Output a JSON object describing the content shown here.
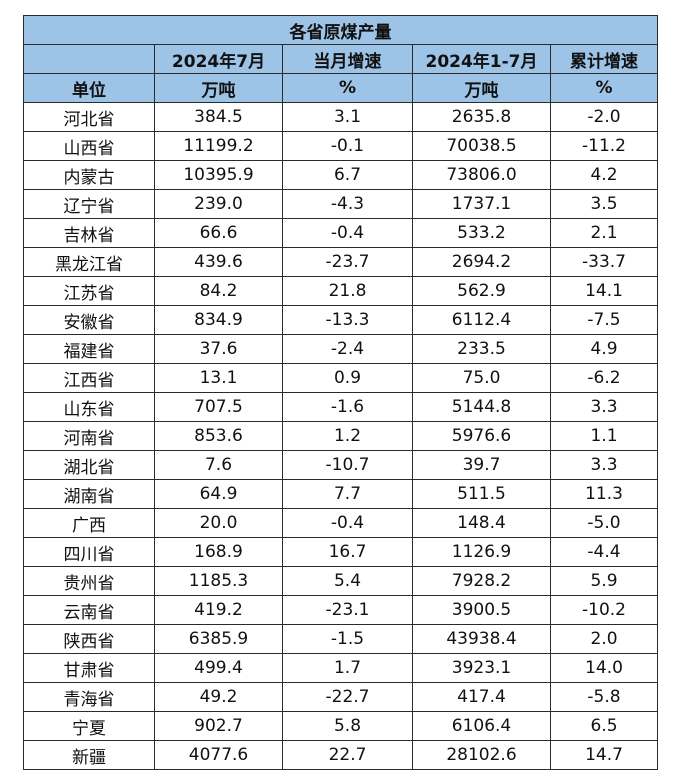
{
  "table": {
    "title": "各省原煤产量",
    "header_row1": [
      "",
      "2024年7月",
      "当月增速",
      "2024年1-7月",
      "累计增速"
    ],
    "header_row2": [
      "单位",
      "万吨",
      "%",
      "万吨",
      "%"
    ],
    "rows": [
      [
        "河北省",
        "384.5",
        "3.1",
        "2635.8",
        "-2.0"
      ],
      [
        "山西省",
        "11199.2",
        "-0.1",
        "70038.5",
        "-11.2"
      ],
      [
        "内蒙古",
        "10395.9",
        "6.7",
        "73806.0",
        "4.2"
      ],
      [
        "辽宁省",
        "239.0",
        "-4.3",
        "1737.1",
        "3.5"
      ],
      [
        "吉林省",
        "66.6",
        "-0.4",
        "533.2",
        "2.1"
      ],
      [
        "黑龙江省",
        "439.6",
        "-23.7",
        "2694.2",
        "-33.7"
      ],
      [
        "江苏省",
        "84.2",
        "21.8",
        "562.9",
        "14.1"
      ],
      [
        "安徽省",
        "834.9",
        "-13.3",
        "6112.4",
        "-7.5"
      ],
      [
        "福建省",
        "37.6",
        "-2.4",
        "233.5",
        "4.9"
      ],
      [
        "江西省",
        "13.1",
        "0.9",
        "75.0",
        "-6.2"
      ],
      [
        "山东省",
        "707.5",
        "-1.6",
        "5144.8",
        "3.3"
      ],
      [
        "河南省",
        "853.6",
        "1.2",
        "5976.6",
        "1.1"
      ],
      [
        "湖北省",
        "7.6",
        "-10.7",
        "39.7",
        "3.3"
      ],
      [
        "湖南省",
        "64.9",
        "7.7",
        "511.5",
        "11.3"
      ],
      [
        "广西",
        "20.0",
        "-0.4",
        "148.4",
        "-5.0"
      ],
      [
        "四川省",
        "168.9",
        "16.7",
        "1126.9",
        "-4.4"
      ],
      [
        "贵州省",
        "1185.3",
        "5.4",
        "7928.2",
        "5.9"
      ],
      [
        "云南省",
        "419.2",
        "-23.1",
        "3900.5",
        "-10.2"
      ],
      [
        "陕西省",
        "6385.9",
        "-1.5",
        "43938.4",
        "2.0"
      ],
      [
        "甘肃省",
        "499.4",
        "1.7",
        "3923.1",
        "14.0"
      ],
      [
        "青海省",
        "49.2",
        "-22.7",
        "417.4",
        "-5.8"
      ],
      [
        "宁夏",
        "902.7",
        "5.8",
        "6106.4",
        "6.5"
      ],
      [
        "新疆",
        "4077.6",
        "22.7",
        "28102.6",
        "14.7"
      ]
    ]
  }
}
